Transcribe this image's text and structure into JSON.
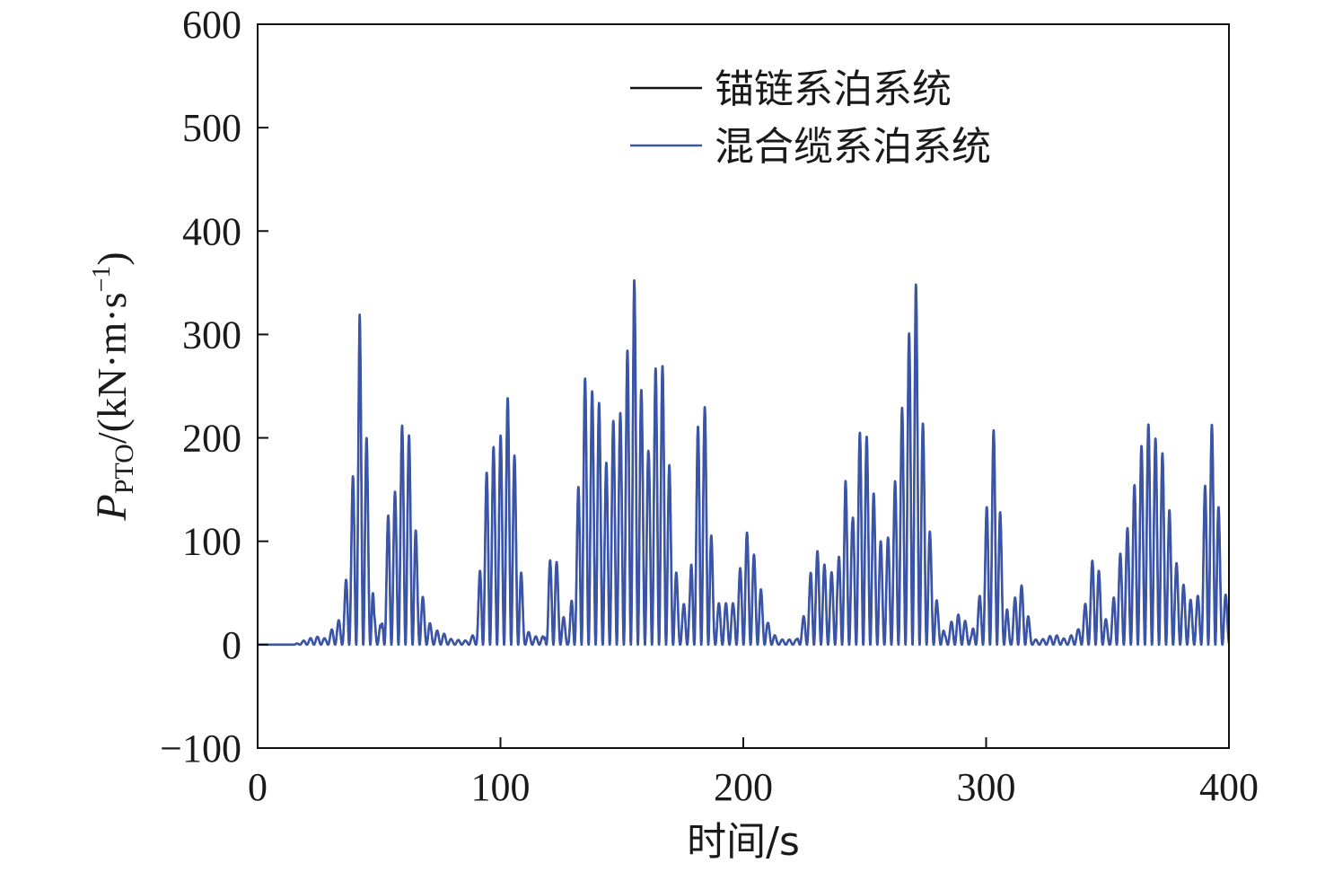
{
  "chart_data": {
    "type": "line",
    "xlabel": "时间/s",
    "ylabel": {
      "symbol": "P",
      "subscript": "PTO",
      "unit_open": "/(kN·m·s",
      "unit_sup": "−1",
      "unit_close": ")"
    },
    "xlim": [
      0,
      400
    ],
    "ylim": [
      -100,
      600
    ],
    "xticks": [
      0,
      100,
      200,
      300,
      400
    ],
    "yticks": [
      -100,
      0,
      100,
      200,
      300,
      400,
      500,
      600
    ],
    "xtick_labels": [
      "0",
      "100",
      "200",
      "300",
      "400"
    ],
    "ytick_labels": [
      "−100",
      "0",
      "100",
      "200",
      "300",
      "400",
      "500",
      "600"
    ],
    "grid": false,
    "legend_position": "top-right",
    "oscillation_period_s": 2.9,
    "series": [
      {
        "name": "锚链系泊系统",
        "color": "#111111",
        "peak_envelope": [
          [
            0,
            0
          ],
          [
            15,
            0
          ],
          [
            20,
            5
          ],
          [
            24,
            8
          ],
          [
            28,
            6
          ],
          [
            32,
            20
          ],
          [
            35,
            28
          ],
          [
            37,
            80
          ],
          [
            40,
            193
          ],
          [
            42,
            320
          ],
          [
            45,
            196
          ],
          [
            48,
            30
          ],
          [
            51,
            18
          ],
          [
            54,
            136
          ],
          [
            57,
            150
          ],
          [
            60,
            225
          ],
          [
            63,
            196
          ],
          [
            66,
            78
          ],
          [
            69,
            32
          ],
          [
            72,
            15
          ],
          [
            76,
            12
          ],
          [
            80,
            5
          ],
          [
            86,
            4
          ],
          [
            90,
            12
          ],
          [
            92,
            93
          ],
          [
            95,
            189
          ],
          [
            98,
            192
          ],
          [
            101,
            207
          ],
          [
            104,
            255
          ],
          [
            107,
            135
          ],
          [
            110,
            15
          ],
          [
            114,
            8
          ],
          [
            118,
            8
          ],
          [
            120,
            75
          ],
          [
            122,
            108
          ],
          [
            125,
            37
          ],
          [
            128,
            8
          ],
          [
            131,
            95
          ],
          [
            134,
            263
          ],
          [
            137,
            243
          ],
          [
            140,
            251
          ],
          [
            143,
            168
          ],
          [
            147,
            224
          ],
          [
            150,
            224
          ],
          [
            155,
            357
          ],
          [
            158,
            247
          ],
          [
            161,
            186
          ],
          [
            165,
            299
          ],
          [
            168,
            248
          ],
          [
            171,
            108
          ],
          [
            174,
            30
          ],
          [
            178,
            55
          ],
          [
            182,
            244
          ],
          [
            185,
            224
          ],
          [
            188,
            40
          ],
          [
            192,
            40
          ],
          [
            196,
            40
          ],
          [
            199,
            78
          ],
          [
            201,
            112
          ],
          [
            204,
            92
          ],
          [
            207,
            57
          ],
          [
            210,
            22
          ],
          [
            214,
            5
          ],
          [
            218,
            5
          ],
          [
            222,
            5
          ],
          [
            226,
            37
          ],
          [
            229,
            94
          ],
          [
            232,
            87
          ],
          [
            235,
            67
          ],
          [
            239,
            76
          ],
          [
            242,
            160
          ],
          [
            245,
            120
          ],
          [
            249,
            234
          ],
          [
            252,
            180
          ],
          [
            255,
            121
          ],
          [
            258,
            82
          ],
          [
            261,
            123
          ],
          [
            264,
            194
          ],
          [
            268,
            296
          ],
          [
            271,
            354
          ],
          [
            274,
            214
          ],
          [
            277,
            105
          ],
          [
            280,
            37
          ],
          [
            283,
            10
          ],
          [
            287,
            28
          ],
          [
            290,
            30
          ],
          [
            294,
            10
          ],
          [
            298,
            55
          ],
          [
            301,
            161
          ],
          [
            304,
            228
          ],
          [
            307,
            67
          ],
          [
            310,
            10
          ],
          [
            313,
            68
          ],
          [
            316,
            48
          ],
          [
            319,
            5
          ],
          [
            323,
            5
          ],
          [
            328,
            10
          ],
          [
            333,
            5
          ],
          [
            338,
            15
          ],
          [
            342,
            50
          ],
          [
            345,
            105
          ],
          [
            348,
            37
          ],
          [
            351,
            10
          ],
          [
            354,
            83
          ],
          [
            357,
            95
          ],
          [
            360,
            140
          ],
          [
            363,
            180
          ],
          [
            366,
            218
          ],
          [
            369,
            200
          ],
          [
            372,
            197
          ],
          [
            375,
            140
          ],
          [
            378,
            82
          ],
          [
            382,
            53
          ],
          [
            385,
            40
          ],
          [
            388,
            50
          ],
          [
            391,
            197
          ],
          [
            394,
            221
          ],
          [
            397,
            72
          ],
          [
            400,
            30
          ]
        ]
      },
      {
        "name": "混合缆系泊系统",
        "color": "#3a54a8",
        "peak_envelope": [
          [
            0,
            0
          ],
          [
            15,
            0
          ],
          [
            20,
            5
          ],
          [
            24,
            8
          ],
          [
            28,
            6
          ],
          [
            32,
            20
          ],
          [
            35,
            28
          ],
          [
            37,
            80
          ],
          [
            40,
            193
          ],
          [
            42,
            320
          ],
          [
            45,
            196
          ],
          [
            48,
            30
          ],
          [
            51,
            18
          ],
          [
            54,
            136
          ],
          [
            57,
            150
          ],
          [
            60,
            225
          ],
          [
            63,
            196
          ],
          [
            66,
            78
          ],
          [
            69,
            32
          ],
          [
            72,
            15
          ],
          [
            76,
            12
          ],
          [
            80,
            5
          ],
          [
            86,
            4
          ],
          [
            90,
            12
          ],
          [
            92,
            93
          ],
          [
            95,
            189
          ],
          [
            98,
            192
          ],
          [
            101,
            207
          ],
          [
            104,
            255
          ],
          [
            107,
            135
          ],
          [
            110,
            15
          ],
          [
            114,
            8
          ],
          [
            118,
            8
          ],
          [
            120,
            75
          ],
          [
            122,
            108
          ],
          [
            125,
            37
          ],
          [
            128,
            8
          ],
          [
            131,
            95
          ],
          [
            134,
            263
          ],
          [
            137,
            243
          ],
          [
            140,
            251
          ],
          [
            143,
            168
          ],
          [
            147,
            224
          ],
          [
            150,
            224
          ],
          [
            155,
            357
          ],
          [
            158,
            247
          ],
          [
            161,
            186
          ],
          [
            165,
            299
          ],
          [
            168,
            248
          ],
          [
            171,
            108
          ],
          [
            174,
            30
          ],
          [
            178,
            55
          ],
          [
            182,
            244
          ],
          [
            185,
            224
          ],
          [
            188,
            40
          ],
          [
            192,
            40
          ],
          [
            196,
            40
          ],
          [
            199,
            78
          ],
          [
            201,
            112
          ],
          [
            204,
            92
          ],
          [
            207,
            57
          ],
          [
            210,
            22
          ],
          [
            214,
            5
          ],
          [
            218,
            5
          ],
          [
            222,
            5
          ],
          [
            226,
            37
          ],
          [
            229,
            94
          ],
          [
            232,
            87
          ],
          [
            235,
            67
          ],
          [
            239,
            76
          ],
          [
            242,
            160
          ],
          [
            245,
            120
          ],
          [
            249,
            234
          ],
          [
            252,
            180
          ],
          [
            255,
            121
          ],
          [
            258,
            82
          ],
          [
            261,
            123
          ],
          [
            264,
            194
          ],
          [
            268,
            296
          ],
          [
            271,
            354
          ],
          [
            274,
            214
          ],
          [
            277,
            105
          ],
          [
            280,
            37
          ],
          [
            283,
            10
          ],
          [
            287,
            28
          ],
          [
            290,
            30
          ],
          [
            294,
            10
          ],
          [
            298,
            55
          ],
          [
            301,
            161
          ],
          [
            304,
            228
          ],
          [
            307,
            67
          ],
          [
            310,
            10
          ],
          [
            313,
            68
          ],
          [
            316,
            48
          ],
          [
            319,
            5
          ],
          [
            323,
            5
          ],
          [
            328,
            10
          ],
          [
            333,
            5
          ],
          [
            338,
            15
          ],
          [
            342,
            50
          ],
          [
            345,
            105
          ],
          [
            348,
            37
          ],
          [
            351,
            10
          ],
          [
            354,
            83
          ],
          [
            357,
            95
          ],
          [
            360,
            140
          ],
          [
            363,
            180
          ],
          [
            366,
            218
          ],
          [
            369,
            200
          ],
          [
            372,
            197
          ],
          [
            375,
            140
          ],
          [
            378,
            82
          ],
          [
            382,
            53
          ],
          [
            385,
            40
          ],
          [
            388,
            50
          ],
          [
            391,
            197
          ],
          [
            394,
            221
          ],
          [
            397,
            72
          ],
          [
            400,
            30
          ]
        ]
      }
    ]
  }
}
